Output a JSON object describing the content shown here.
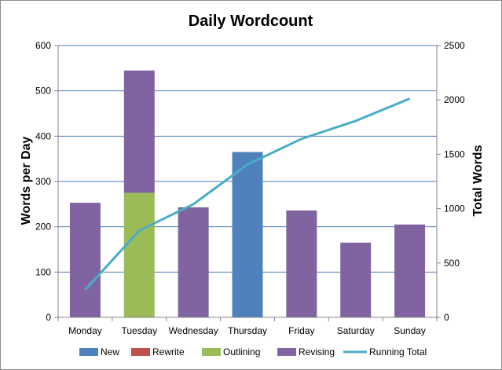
{
  "chart_data": {
    "type": "bar",
    "stacked": true,
    "title": "Daily Wordcount",
    "categories": [
      "Monday",
      "Tuesday",
      "Wednesday",
      "Thursday",
      "Friday",
      "Saturday",
      "Sunday"
    ],
    "ylabel": "Words per Day",
    "y2label": "Total Words",
    "ylim": [
      0,
      600
    ],
    "yticks": [
      0,
      100,
      200,
      300,
      400,
      500,
      600
    ],
    "y2lim": [
      0,
      2500
    ],
    "y2ticks": [
      0,
      500,
      1000,
      1500,
      2000,
      2500
    ],
    "grid": true,
    "legend_position": "bottom",
    "series": [
      {
        "name": "New",
        "color": "#4f81bd",
        "values": [
          0,
          0,
          0,
          365,
          0,
          0,
          0
        ]
      },
      {
        "name": "Rewrite",
        "color": "#c0504d",
        "values": [
          0,
          0,
          0,
          0,
          0,
          0,
          0
        ]
      },
      {
        "name": "Outlining",
        "color": "#9bbb59",
        "values": [
          0,
          275,
          0,
          0,
          0,
          0,
          0
        ]
      },
      {
        "name": "Revising",
        "color": "#8064a2",
        "values": [
          253,
          270,
          243,
          0,
          236,
          165,
          205
        ]
      }
    ],
    "line_series": {
      "name": "Running Total",
      "color": "#4bacc6",
      "axis": "secondary",
      "values": [
        253,
        798,
        1041,
        1406,
        1642,
        1807,
        2012
      ]
    }
  }
}
